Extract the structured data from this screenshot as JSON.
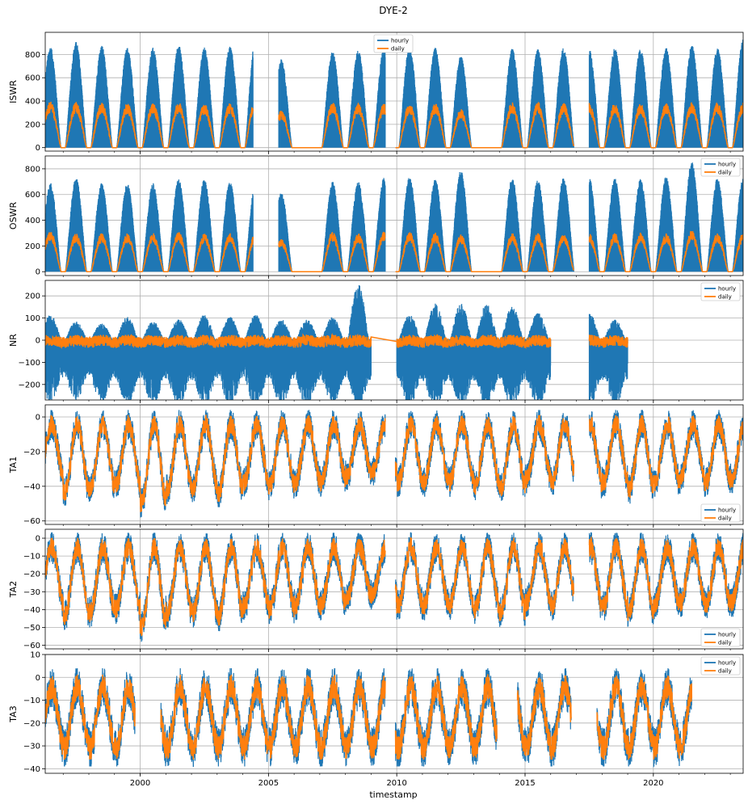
{
  "chart_data": {
    "type": "line",
    "title": "DYE-2",
    "xlabel": "timestamp",
    "xlim": [
      1996.3,
      2023.5
    ],
    "x_ticks": [
      "2000",
      "2005",
      "2010",
      "2015",
      "2020"
    ],
    "legend": [
      "hourly",
      "daily"
    ],
    "colors": {
      "hourly": "#1f77b4",
      "daily": "#ff7f0e"
    },
    "grid": true,
    "panels": [
      {
        "ylabel": "ISWR",
        "ylim": [
          -30,
          990
        ],
        "yticks": [
          "0",
          "200",
          "400",
          "600",
          "800"
        ],
        "legend_placement": "top-center",
        "kind": "radiation",
        "hourly_peak": [
          870,
          910,
          880,
          860,
          860,
          880,
          860,
          870,
          930,
          760,
          0,
          830,
          840,
          860,
          870,
          860,
          790,
          0,
          850,
          850,
          860,
          850,
          860,
          850,
          860,
          880,
          860,
          930,
          910
        ],
        "daily_peak": [
          400,
          395,
          395,
          385,
          390,
          390,
          380,
          385,
          440,
          320,
          0,
          390,
          380,
          380,
          385,
          385,
          330,
          0,
          390,
          390,
          385,
          385,
          385,
          380,
          385,
          390,
          385,
          390,
          370
        ],
        "gaps": [
          [
            2004.4,
            2005.4
          ],
          [
            2009.55,
            2009.95
          ],
          [
            2016.9,
            2017.5
          ]
        ]
      },
      {
        "ylabel": "OSWR",
        "ylim": [
          -30,
          900
        ],
        "yticks": [
          "0",
          "200",
          "400",
          "600",
          "800"
        ],
        "legend_placement": "top-right",
        "kind": "radiation",
        "hourly_peak": [
          690,
          730,
          690,
          690,
          690,
          720,
          720,
          700,
          700,
          620,
          0,
          700,
          700,
          730,
          740,
          720,
          790,
          0,
          730,
          720,
          730,
          730,
          730,
          720,
          740,
          860,
          730,
          730,
          720
        ],
        "daily_peak": [
          320,
          300,
          300,
          300,
          300,
          310,
          300,
          300,
          310,
          260,
          0,
          310,
          300,
          310,
          310,
          300,
          290,
          0,
          300,
          300,
          300,
          300,
          300,
          300,
          300,
          320,
          300,
          300,
          300
        ],
        "gaps": [
          [
            2004.4,
            2005.4
          ],
          [
            2009.55,
            2009.95
          ],
          [
            2016.9,
            2017.5
          ]
        ]
      },
      {
        "ylabel": "NR",
        "ylim": [
          -270,
          270
        ],
        "yticks": [
          "−200",
          "−100",
          "0",
          "100",
          "200"
        ],
        "legend_placement": "top-right",
        "kind": "netrad",
        "hourly_max": [
          110,
          80,
          70,
          100,
          80,
          90,
          110,
          100,
          110,
          90,
          90,
          100,
          250,
          0,
          110,
          160,
          160,
          160,
          150,
          120,
          0,
          120,
          90,
          0,
          0,
          0,
          0,
          0
        ],
        "hourly_min": [
          -220,
          -210,
          -220,
          -230,
          -230,
          -240,
          -240,
          -240,
          -240,
          -235,
          -240,
          -240,
          -240,
          0,
          -230,
          -250,
          -250,
          -245,
          -245,
          -245,
          0,
          -245,
          -240,
          0,
          0,
          0,
          0,
          0
        ],
        "daily_range": [
          -50,
          40
        ],
        "gaps": [
          [
            2009.55,
            2009.95
          ],
          [
            2016.9,
            2017.5
          ],
          [
            2019.0,
            2023.5
          ]
        ]
      },
      {
        "ylabel": "TA1",
        "ylim": [
          -62,
          7
        ],
        "yticks": [
          "−60",
          "−40",
          "−20",
          "0"
        ],
        "legend_placement": "bottom-right",
        "kind": "temp",
        "summer_max": 4,
        "winter_min": [
          -44,
          -52,
          -50,
          -48,
          -58,
          -50,
          -50,
          -52,
          -46,
          -48,
          -46,
          -46,
          -42,
          -40,
          -46,
          -46,
          -46,
          -48,
          -50,
          -44,
          -46,
          -48,
          -46,
          -50,
          -46,
          -44,
          -46,
          -44
        ],
        "gaps": [
          [
            2009.55,
            2009.95
          ],
          [
            2016.9,
            2017.5
          ]
        ]
      },
      {
        "ylabel": "TA2",
        "ylim": [
          -62,
          5
        ],
        "yticks": [
          "−60",
          "−50",
          "−40",
          "−30",
          "−20",
          "−10",
          "0"
        ],
        "legend_placement": "bottom-right",
        "kind": "temp",
        "summer_max": 3,
        "winter_min": [
          -46,
          -52,
          -50,
          -48,
          -58,
          -50,
          -50,
          -52,
          -46,
          -48,
          -46,
          -46,
          -42,
          -40,
          -46,
          -46,
          -46,
          -48,
          -50,
          -44,
          -46,
          -48,
          -46,
          -50,
          -46,
          -44,
          -46,
          -44
        ],
        "gaps": [
          [
            2009.55,
            2009.95
          ],
          [
            2016.9,
            2017.5
          ]
        ]
      },
      {
        "ylabel": "TA3",
        "ylim": [
          -42,
          10
        ],
        "yticks": [
          "−40",
          "−30",
          "−20",
          "−10",
          "0",
          "10"
        ],
        "legend_placement": "top-right",
        "kind": "temp3",
        "summer_max": 4,
        "winter_min": -39,
        "gaps": [
          [
            1999.8,
            2000.8
          ],
          [
            2009.55,
            2009.95
          ],
          [
            2013.9,
            2014.7
          ],
          [
            2016.8,
            2017.8
          ],
          [
            2021.5,
            2023.5
          ]
        ]
      }
    ]
  }
}
